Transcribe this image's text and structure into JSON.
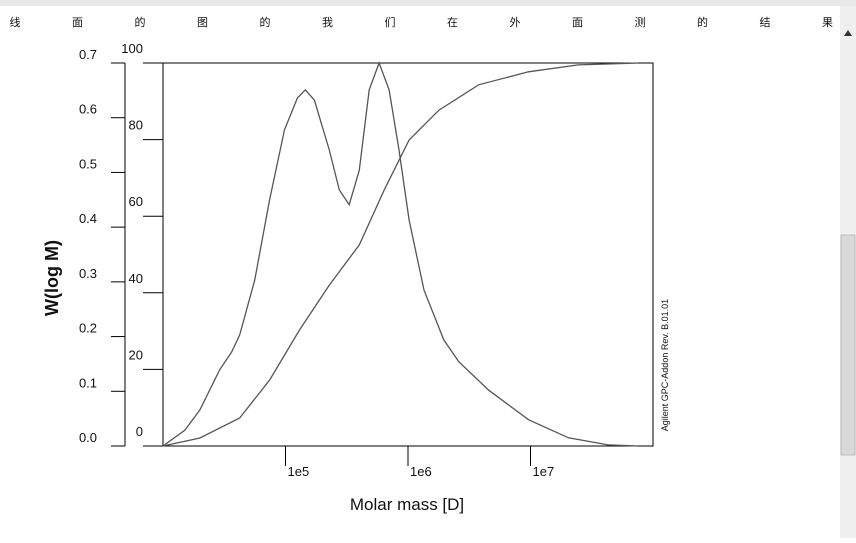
{
  "header": {
    "items": [
      "线",
      "面",
      "的",
      "图",
      "的",
      "我",
      "们",
      "在",
      "外",
      "面",
      "测",
      "的",
      "结",
      "果"
    ]
  },
  "chart_data": {
    "type": "line",
    "ylabel": "W(log M)",
    "xlabel": "Molar mass [D]",
    "annotation": "Agilent GPC-Addon  Rev. B.01.01",
    "xscale": "log",
    "xlim": [
      10000,
      100000000
    ],
    "xticks": [
      {
        "value": 100000,
        "label": "1e5"
      },
      {
        "value": 1000000,
        "label": "1e6"
      },
      {
        "value": 10000000,
        "label": "1e7"
      }
    ],
    "ylim": [
      0,
      0.7
    ],
    "yticks": [
      {
        "value": 0,
        "label": "0.0"
      },
      0.1,
      0.2,
      0.3,
      0.4,
      0.5,
      0.6,
      0.7
    ],
    "y2lim": [
      0,
      100
    ],
    "y2ticks": [
      0,
      20,
      40,
      60,
      80,
      100
    ],
    "series": [
      {
        "color": "#555555",
        "x": [
          10000,
          15100,
          20000,
          29000,
          36400,
          42300,
          56000,
          74100,
          98200,
          125000,
          145000,
          172000,
          228000,
          275000,
          331000,
          400000,
          482000,
          581000,
          701000,
          845000,
          1020000,
          1350000,
          1960000,
          2600000,
          4560000,
          9630000,
          20400000,
          43100000,
          75500000
        ],
        "values": [
          0,
          0.029,
          0.066,
          0.139,
          0.172,
          0.203,
          0.303,
          0.45,
          0.578,
          0.636,
          0.651,
          0.632,
          0.541,
          0.468,
          0.441,
          0.504,
          0.651,
          0.7,
          0.651,
          0.541,
          0.413,
          0.285,
          0.194,
          0.154,
          0.102,
          0.048,
          0.015,
          0.002,
          0
        ]
      },
      {
        "color": "#555555",
        "axis": "y2",
        "x": [
          10000,
          20000,
          42300,
          74100,
          130000,
          228000,
          400000,
          638000,
          1020000,
          1790000,
          3780000,
          9630000,
          24500000,
          75500000
        ],
        "values": [
          0,
          2.1,
          7.3,
          17.2,
          30.3,
          42.0,
          52.5,
          66.8,
          79.9,
          87.7,
          94.3,
          97.7,
          99.5,
          100
        ]
      }
    ]
  }
}
